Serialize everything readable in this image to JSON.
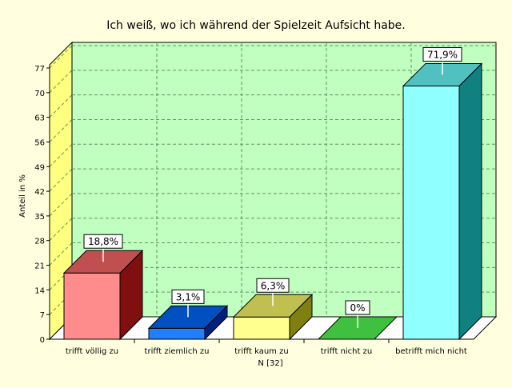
{
  "chart_data": {
    "type": "bar",
    "title": "Ich weiß, wo ich während der Spielzeit Aufsicht habe.",
    "ylabel": "Anteil in %",
    "categories": [
      "trifft völlig zu",
      "trifft ziemlich zu",
      "trifft kaum zu",
      "trifft nicht zu",
      "betrifft mich nicht"
    ],
    "values": [
      18.8,
      3.1,
      6.3,
      0,
      71.9
    ],
    "data_labels": [
      "18,8%",
      "3,1%",
      "6,3%",
      "0%",
      "71,9%"
    ],
    "yticks": [
      0,
      7,
      14,
      21,
      28,
      35,
      42,
      49,
      56,
      63,
      70,
      77
    ],
    "ylim": [
      0,
      77
    ],
    "footnote": "N [32]",
    "grid": true,
    "colors": {
      "background": "#ffffe0",
      "plot_back": "#c0ffc0",
      "left_wall": "#ffff80",
      "floor": "#ffffff",
      "grid": "#5a9a5a",
      "bars": [
        {
          "front": "#ff8c8c",
          "top": "#c05050",
          "side": "#801010"
        },
        {
          "front": "#2080ff",
          "top": "#0050c0",
          "side": "#002080"
        },
        {
          "front": "#ffff90",
          "top": "#c0c050",
          "side": "#808010"
        },
        {
          "front": "#60d060",
          "top": "#40c040",
          "side": "#208020"
        },
        {
          "front": "#90ffff",
          "top": "#50c0c0",
          "side": "#108080"
        }
      ]
    }
  }
}
